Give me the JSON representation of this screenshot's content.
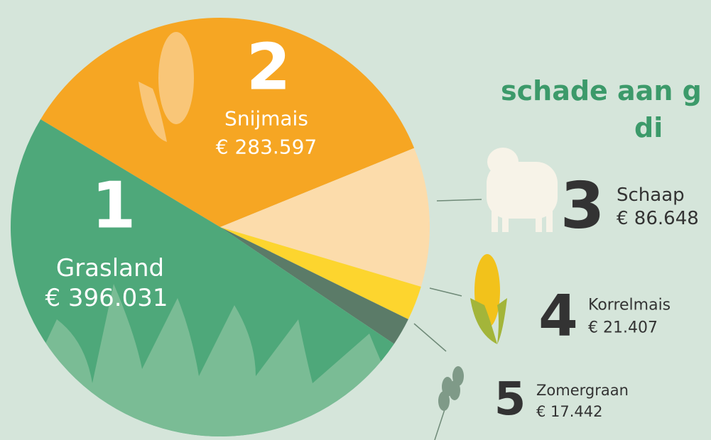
{
  "chart_data": {
    "type": "pie",
    "title_lines": [
      "schade aan g",
      "di"
    ],
    "categories": [
      "Grasland",
      "Snijmais",
      "Schaap",
      "Korrelmais",
      "Zomergraan"
    ],
    "ranks": [
      1,
      2,
      3,
      4,
      5
    ],
    "values": [
      396031,
      283597,
      86648,
      21407,
      17442
    ],
    "value_labels": [
      "€ 396.031",
      "€ 283.597",
      "€ 86.648",
      "€ 21.407",
      "€ 17.442"
    ],
    "colors": [
      "#4ea87a",
      "#f6a623",
      "#fcdcab",
      "#fdd52e",
      "#5b7b68"
    ]
  }
}
